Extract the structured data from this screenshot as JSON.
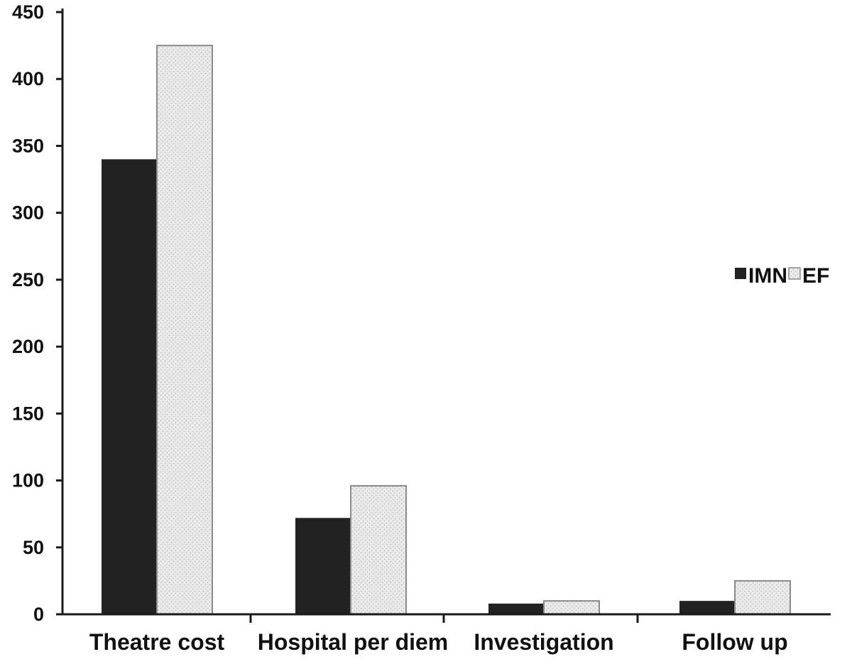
{
  "chart_data": {
    "type": "bar",
    "categories": [
      "Theatre cost",
      "Hospital per diem",
      "Investigation",
      "Follow up"
    ],
    "series": [
      {
        "name": "IMN",
        "values": [
          340,
          72,
          8,
          10
        ],
        "color": "#222222",
        "pattern": "solid"
      },
      {
        "name": "EF",
        "values": [
          425,
          96,
          10,
          25
        ],
        "color": "#e6e6e6",
        "pattern": "dotted"
      }
    ],
    "ylim": [
      0,
      450
    ],
    "yticks": [
      "0",
      "50",
      "100",
      "150",
      "200",
      "250",
      "300",
      "350",
      "400",
      "450"
    ],
    "title": "",
    "xlabel": "",
    "ylabel": "",
    "grid": false,
    "legend_position": "right"
  }
}
